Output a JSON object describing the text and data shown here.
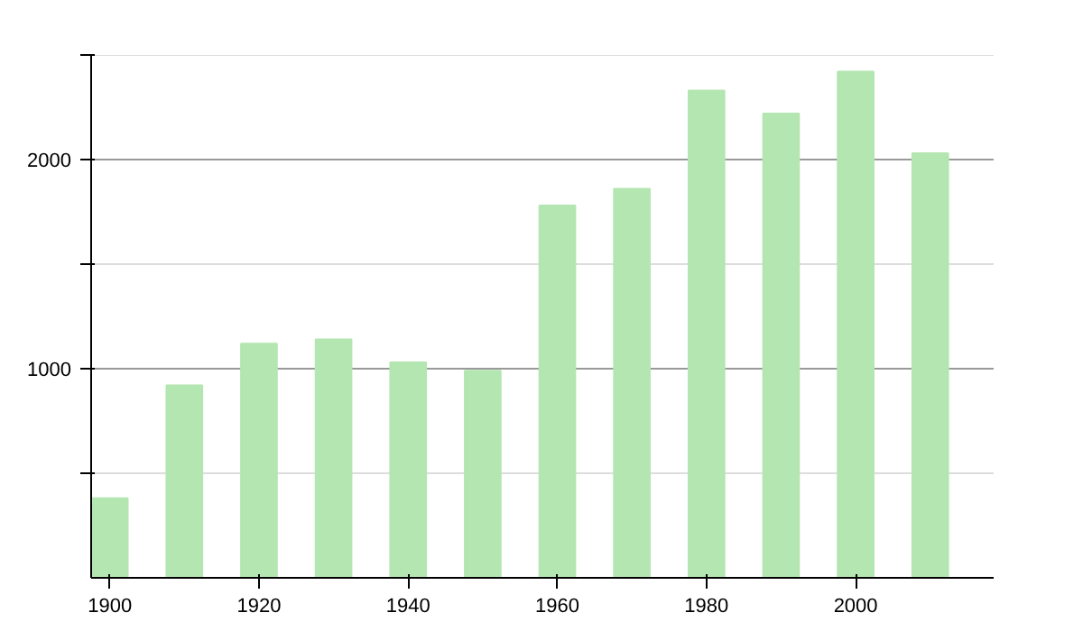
{
  "chart_data": {
    "type": "bar",
    "x": [
      1900,
      1910,
      1920,
      1930,
      1940,
      1950,
      1960,
      1970,
      1980,
      1990,
      2000,
      2010
    ],
    "values": [
      380,
      920,
      1120,
      1140,
      1030,
      990,
      1780,
      1860,
      2330,
      2220,
      2420,
      2030
    ],
    "color": "#b3e6b0",
    "xlim": [
      1897.5,
      2018.5
    ],
    "xticks": [
      1900,
      1920,
      1940,
      1960,
      1980,
      2000
    ],
    "ylim": [
      0,
      2500
    ],
    "yticks": [
      {
        "value": 500,
        "label": null
      },
      1000,
      {
        "value": 1500,
        "label": null
      },
      2000,
      {
        "value": 2500,
        "label": null
      }
    ],
    "grid": "y"
  }
}
